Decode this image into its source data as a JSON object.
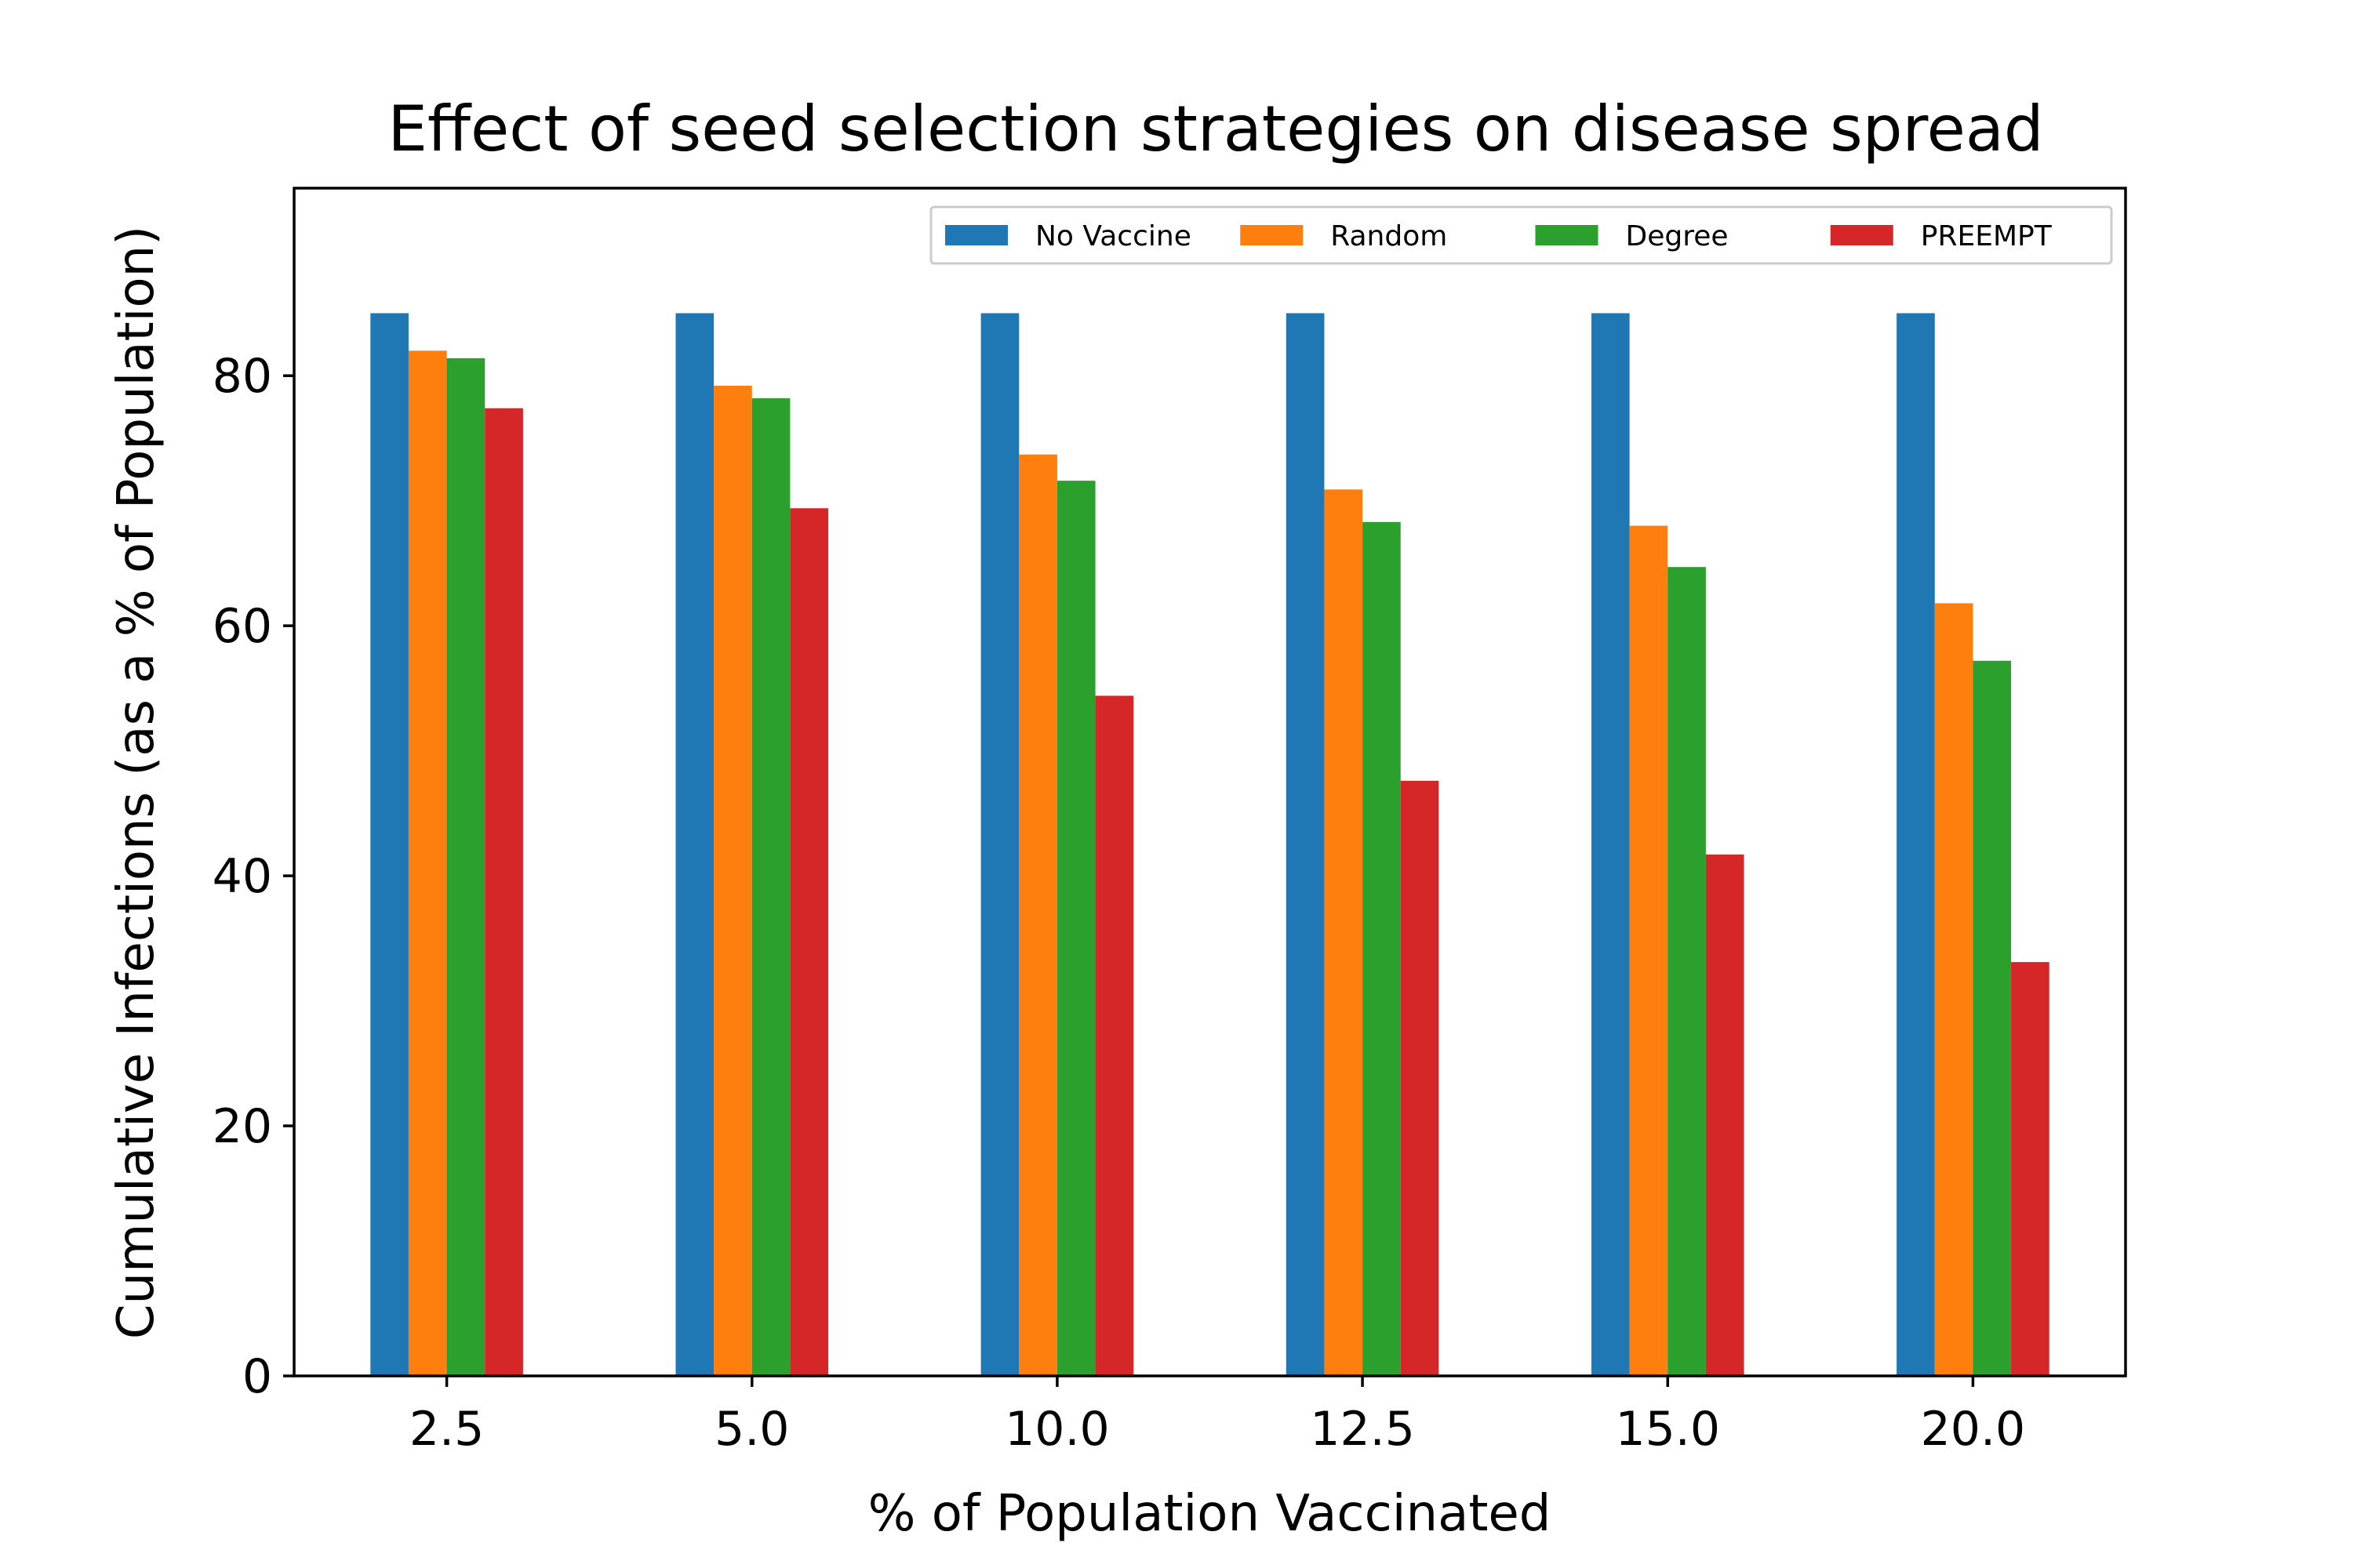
{
  "chart_data": {
    "type": "bar",
    "title": "Effect of seed selection strategies on disease spread",
    "xlabel": "% of Population Vaccinated",
    "ylabel": "Cumulative Infections (as a % of Population)",
    "categories": [
      "2.5",
      "5.0",
      "10.0",
      "12.5",
      "15.0",
      "20.0"
    ],
    "ylim": [
      0,
      95
    ],
    "yticks": [
      "0",
      "20",
      "40",
      "60",
      "80"
    ],
    "series": [
      {
        "name": "No Vaccine",
        "color": "#1f77b4",
        "values": [
          85,
          85,
          85,
          85,
          85,
          85
        ]
      },
      {
        "name": "Random",
        "color": "#ff7f0e",
        "values": [
          82.0,
          79.2,
          73.7,
          70.9,
          68.0,
          61.8
        ]
      },
      {
        "name": "Degree",
        "color": "#2ca02c",
        "values": [
          81.4,
          78.2,
          71.6,
          68.3,
          64.7,
          57.2
        ]
      },
      {
        "name": "PREEMPT",
        "color": "#d62728",
        "values": [
          77.4,
          69.4,
          54.4,
          47.6,
          41.7,
          33.1
        ]
      }
    ],
    "legend": {
      "position": "top-right",
      "columns": 4
    },
    "grid": false
  }
}
